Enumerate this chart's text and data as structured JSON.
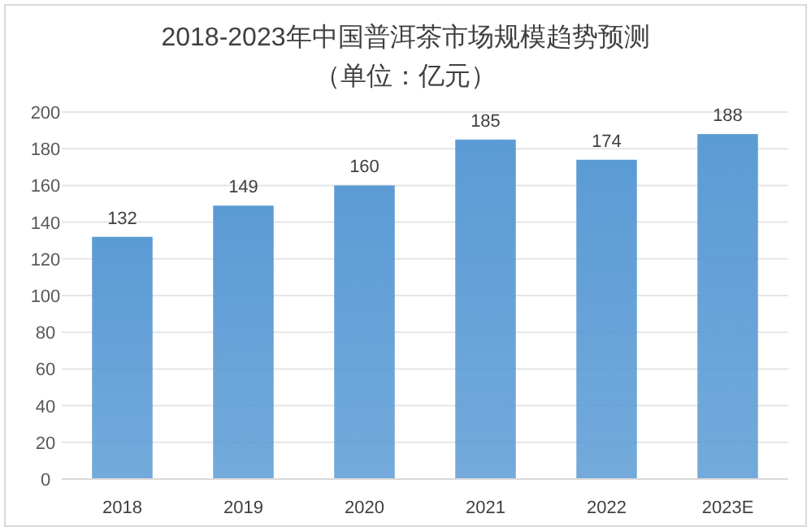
{
  "chart_data": {
    "type": "bar",
    "title": "2018-2023年中国普洱茶市场规模趋势预测",
    "subtitle": "（单位：亿元）",
    "categories": [
      "2018",
      "2019",
      "2020",
      "2021",
      "2022",
      "2023E"
    ],
    "series": [
      {
        "color": "#5b9bd5",
        "values": [
          132,
          149,
          160,
          185,
          174,
          188
        ]
      }
    ],
    "ylim": [
      0,
      200
    ],
    "yticks": [
      0,
      20,
      40,
      60,
      80,
      100,
      120,
      140,
      160,
      180,
      200
    ],
    "grid": "y",
    "data_labels": true
  }
}
